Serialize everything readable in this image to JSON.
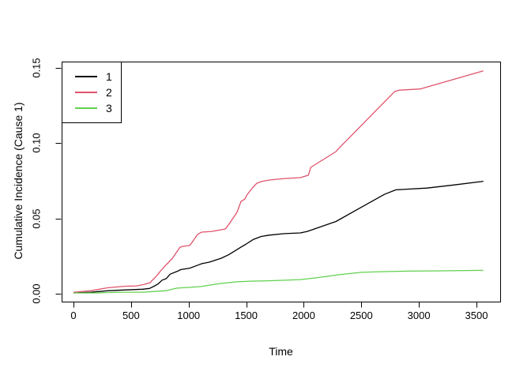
{
  "figure": {
    "background": "#ffffff"
  },
  "legend": {
    "items": [
      {
        "label": "1",
        "color": "#000000"
      },
      {
        "label": "2",
        "color": "#DF536B"
      },
      {
        "label": "3",
        "color": "#61D04F"
      }
    ]
  },
  "chart_data": {
    "type": "line",
    "title": "",
    "xlabel": "Time",
    "ylabel": "Cumulative Incidence (Cause 1)",
    "xlim": [
      0,
      3600
    ],
    "ylim": [
      0,
      0.15
    ],
    "x_ticks": [
      0,
      500,
      1000,
      1500,
      2000,
      2500,
      3000,
      3500
    ],
    "y_tick_labels": [
      "0.00",
      "0.05",
      "0.10",
      "0.15"
    ],
    "grid": false,
    "legend_position": "top-left",
    "series": [
      {
        "name": "1",
        "color": "#000000",
        "points": [
          [
            0,
            0.0005
          ],
          [
            150,
            0.001
          ],
          [
            300,
            0.002
          ],
          [
            450,
            0.0025
          ],
          [
            600,
            0.003
          ],
          [
            660,
            0.0035
          ],
          [
            700,
            0.005
          ],
          [
            735,
            0.0065
          ],
          [
            770,
            0.009
          ],
          [
            805,
            0.01
          ],
          [
            840,
            0.013
          ],
          [
            905,
            0.015
          ],
          [
            930,
            0.016
          ],
          [
            1010,
            0.017
          ],
          [
            1080,
            0.019
          ],
          [
            1115,
            0.02
          ],
          [
            1180,
            0.021
          ],
          [
            1285,
            0.0236
          ],
          [
            1350,
            0.026
          ],
          [
            1455,
            0.031
          ],
          [
            1490,
            0.0325
          ],
          [
            1560,
            0.036
          ],
          [
            1630,
            0.038
          ],
          [
            1700,
            0.0389
          ],
          [
            1830,
            0.0399
          ],
          [
            1970,
            0.0404
          ],
          [
            2030,
            0.0414
          ],
          [
            2280,
            0.048
          ],
          [
            2500,
            0.0575
          ],
          [
            2700,
            0.066
          ],
          [
            2800,
            0.069
          ],
          [
            3070,
            0.0702
          ],
          [
            3300,
            0.0722
          ],
          [
            3560,
            0.0747
          ]
        ]
      },
      {
        "name": "2",
        "color": "#DF536B",
        "points": [
          [
            0,
            0.001
          ],
          [
            150,
            0.002
          ],
          [
            300,
            0.004
          ],
          [
            450,
            0.005
          ],
          [
            550,
            0.0052
          ],
          [
            620,
            0.0063
          ],
          [
            665,
            0.0073
          ],
          [
            685,
            0.009
          ],
          [
            700,
            0.01
          ],
          [
            735,
            0.013
          ],
          [
            755,
            0.015
          ],
          [
            790,
            0.018
          ],
          [
            860,
            0.0236
          ],
          [
            925,
            0.0309
          ],
          [
            955,
            0.0315
          ],
          [
            1005,
            0.032
          ],
          [
            1015,
            0.0325
          ],
          [
            1077,
            0.0393
          ],
          [
            1100,
            0.0404
          ],
          [
            1115,
            0.0409
          ],
          [
            1200,
            0.0414
          ],
          [
            1320,
            0.043
          ],
          [
            1355,
            0.0467
          ],
          [
            1420,
            0.054
          ],
          [
            1455,
            0.0613
          ],
          [
            1470,
            0.062
          ],
          [
            1490,
            0.063
          ],
          [
            1505,
            0.0655
          ],
          [
            1560,
            0.0708
          ],
          [
            1592,
            0.0734
          ],
          [
            1630,
            0.0745
          ],
          [
            1700,
            0.0755
          ],
          [
            1830,
            0.0765
          ],
          [
            1970,
            0.0771
          ],
          [
            2040,
            0.0787
          ],
          [
            2060,
            0.0839
          ],
          [
            2280,
            0.0944
          ],
          [
            2295,
            0.0958
          ],
          [
            2790,
            0.1343
          ],
          [
            2830,
            0.1352
          ],
          [
            3010,
            0.136
          ],
          [
            3560,
            0.148
          ]
        ]
      },
      {
        "name": "3",
        "color": "#61D04F",
        "points": [
          [
            0,
            0.0005
          ],
          [
            200,
            0.0005
          ],
          [
            400,
            0.001
          ],
          [
            600,
            0.001
          ],
          [
            800,
            0.002
          ],
          [
            900,
            0.0037
          ],
          [
            1000,
            0.0042
          ],
          [
            1100,
            0.0047
          ],
          [
            1280,
            0.0068
          ],
          [
            1420,
            0.0079
          ],
          [
            1560,
            0.0084
          ],
          [
            1700,
            0.0086
          ],
          [
            1970,
            0.0094
          ],
          [
            2100,
            0.0105
          ],
          [
            2300,
            0.0126
          ],
          [
            2500,
            0.0142
          ],
          [
            2700,
            0.0147
          ],
          [
            2900,
            0.015
          ],
          [
            3200,
            0.0152
          ],
          [
            3560,
            0.0155
          ]
        ]
      }
    ]
  }
}
